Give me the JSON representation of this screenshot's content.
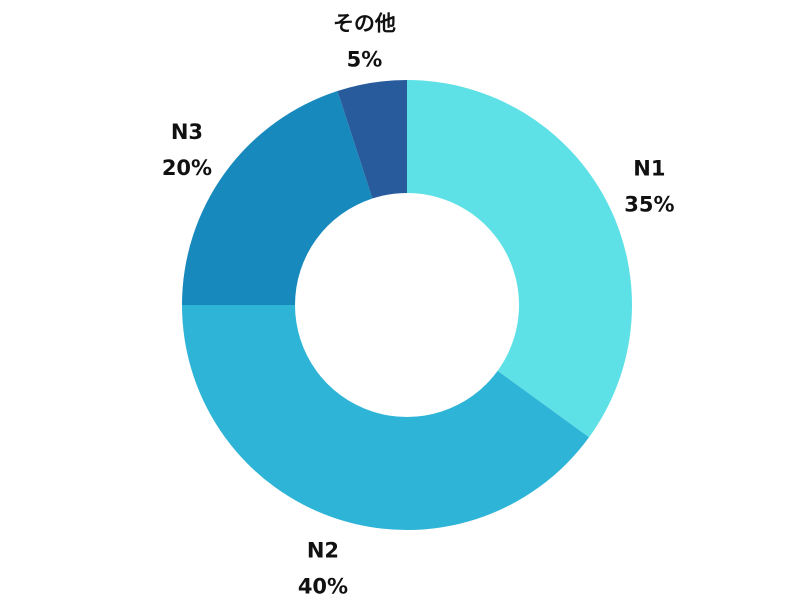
{
  "chart_data": {
    "type": "pie",
    "donut": true,
    "categories": [
      "N1",
      "N2",
      "N3",
      "その他"
    ],
    "values": [
      35,
      40,
      20,
      5
    ],
    "value_labels": [
      "35%",
      "40%",
      "20%",
      "5%"
    ],
    "colors": [
      "#5ee1e6",
      "#2db4d6",
      "#1889bd",
      "#275b9b"
    ],
    "start_angle_deg": 0,
    "direction": "clockwise",
    "legend": "none",
    "title": ""
  }
}
